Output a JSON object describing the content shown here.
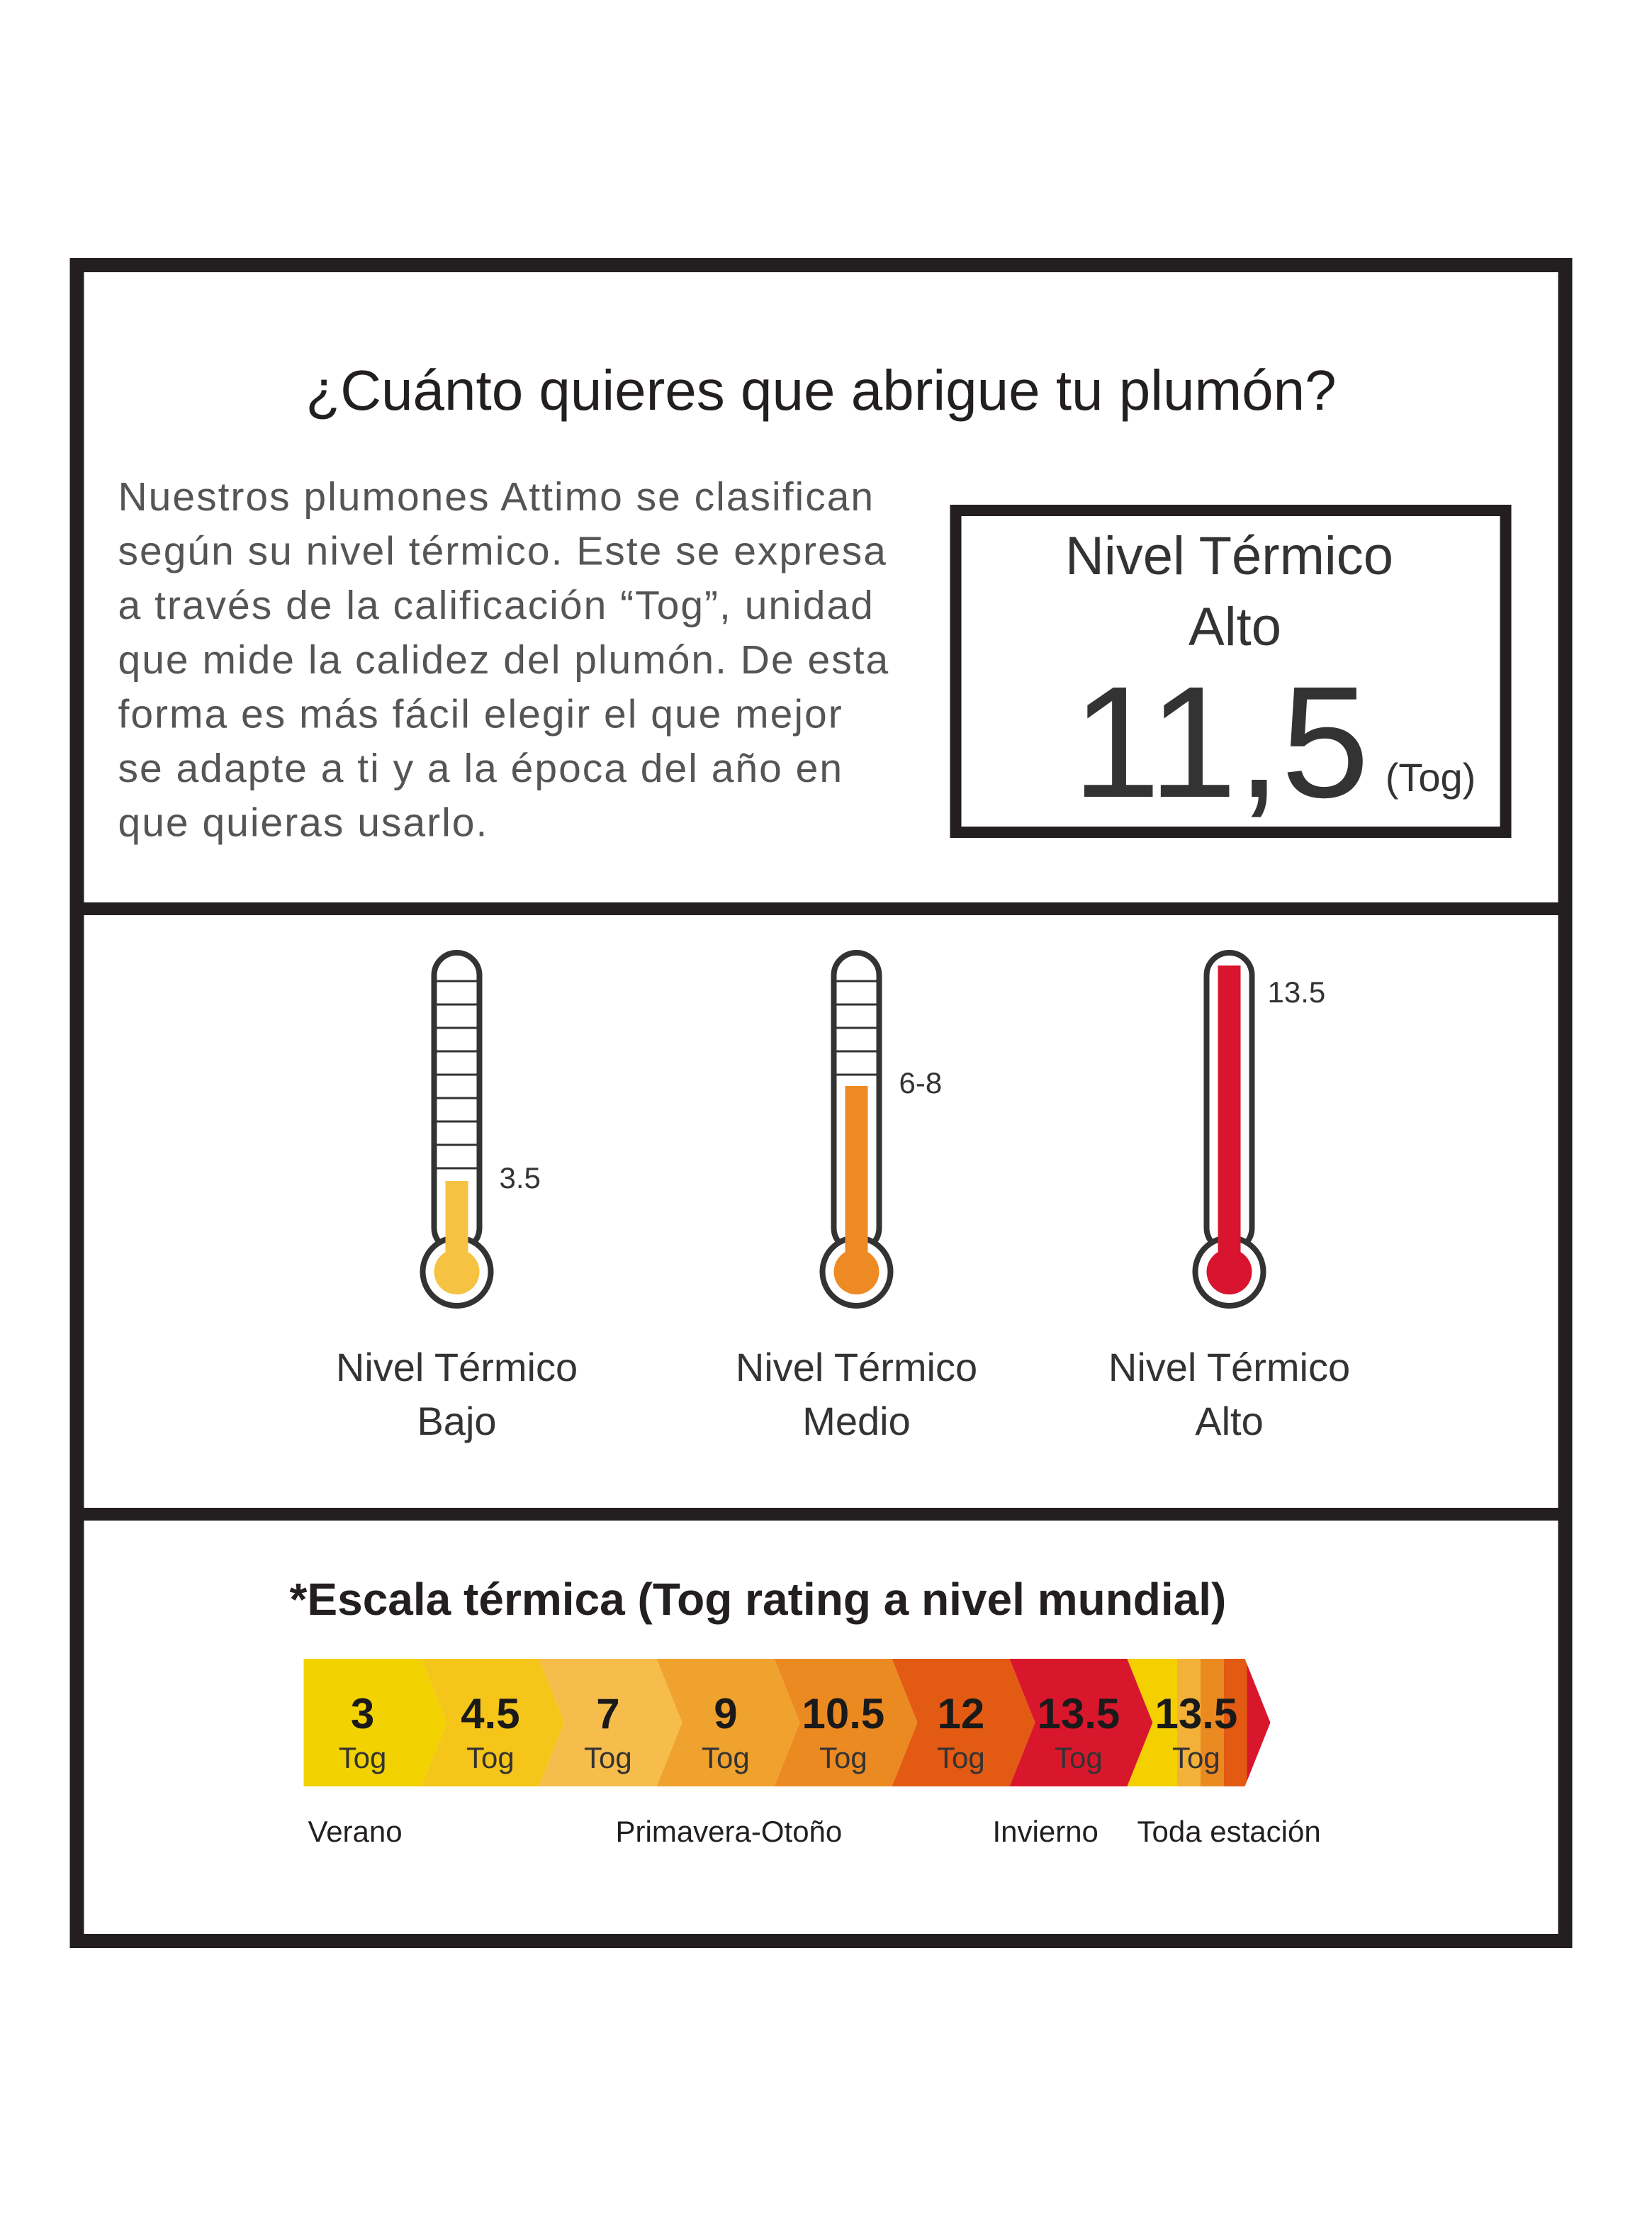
{
  "header": {
    "title": "¿Cuánto quieres que abrigue tu plumón?"
  },
  "intro": {
    "lines": [
      "Nuestros plumones Attimo se clasifican",
      "según su nivel térmico. Este se expresa",
      "a través de la calificación “Tog”, unidad",
      "que mide la calidez del plumón. De esta",
      "forma es más fácil elegir el que mejor",
      "se adapte a ti y a la época del año en",
      "que quieras usarlo."
    ]
  },
  "rating_box": {
    "label_lines": [
      "Nivel Térmico",
      "Alto"
    ],
    "value": "11,5",
    "unit": "(Tog)"
  },
  "thermometers": [
    {
      "value": "3.5",
      "label_lines": [
        "Nivel Térmico",
        "Bajo"
      ],
      "color": "#f5c242"
    },
    {
      "value": "6-8",
      "label_lines": [
        "Nivel Térmico",
        "Medio"
      ],
      "color": "#ee8a24"
    },
    {
      "value": "13.5",
      "label_lines": [
        "Nivel Térmico",
        "Alto"
      ],
      "color": "#d8142e"
    }
  ],
  "scale": {
    "title": "*Escala térmica (Tog rating a nivel mundial)",
    "steps": [
      {
        "value": "3",
        "unit": "Tog",
        "color": "#f2d200"
      },
      {
        "value": "4.5",
        "unit": "Tog",
        "color": "#f5c51a"
      },
      {
        "value": "7",
        "unit": "Tog",
        "color": "#f6bd4c"
      },
      {
        "value": "9",
        "unit": "Tog",
        "color": "#f0a22e"
      },
      {
        "value": "10.5",
        "unit": "Tog",
        "color": "#ec8a22"
      },
      {
        "value": "12",
        "unit": "Tog",
        "color": "#e35a12"
      },
      {
        "value": "13.5",
        "unit": "Tog",
        "color": "#d9172c"
      },
      {
        "value": "13.5",
        "unit": "Tog",
        "color": [
          "#f5d000",
          "#f3b13a",
          "#ec8a22",
          "#e35a12",
          "#d9172c"
        ]
      }
    ],
    "seasons": [
      "Verano",
      "Primavera-Otoño",
      "Invierno",
      "Toda estación"
    ]
  }
}
